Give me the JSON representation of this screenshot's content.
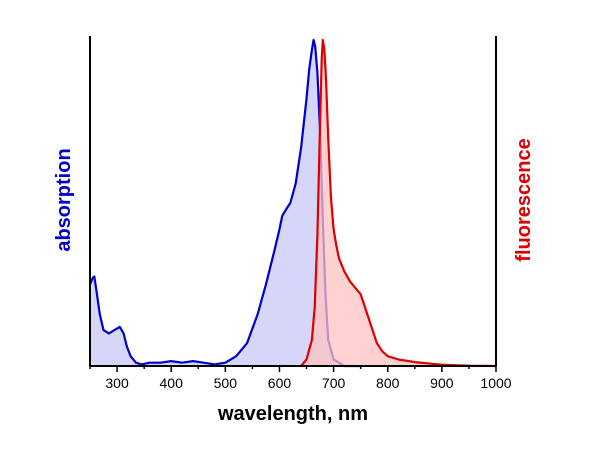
{
  "chart_data": {
    "type": "area",
    "xlabel": "wavelength, nm",
    "ylabel_left": "absorption",
    "ylabel_right": "fluorescence",
    "xlim": [
      250,
      1000
    ],
    "ylim": [
      0,
      1
    ],
    "x_ticks": [
      300,
      400,
      500,
      600,
      700,
      800,
      900,
      1000
    ],
    "grid": false,
    "series": [
      {
        "name": "absorption",
        "color": "#0000cc",
        "fill": "#c8c8f5",
        "axis": "left",
        "x": [
          250,
          255,
          258,
          262,
          268,
          275,
          285,
          295,
          305,
          312,
          318,
          325,
          335,
          345,
          360,
          380,
          400,
          420,
          440,
          460,
          480,
          500,
          520,
          540,
          560,
          575,
          590,
          600,
          605,
          612,
          620,
          630,
          640,
          650,
          655,
          660,
          663,
          666,
          670,
          675,
          680,
          685,
          690,
          700,
          720,
          750
        ],
        "y": [
          0.25,
          0.27,
          0.275,
          0.23,
          0.16,
          0.11,
          0.1,
          0.11,
          0.12,
          0.1,
          0.06,
          0.03,
          0.01,
          0.005,
          0.01,
          0.01,
          0.015,
          0.01,
          0.015,
          0.01,
          0.005,
          0.01,
          0.03,
          0.07,
          0.16,
          0.25,
          0.35,
          0.42,
          0.46,
          0.48,
          0.5,
          0.56,
          0.67,
          0.82,
          0.91,
          0.97,
          1.0,
          0.98,
          0.9,
          0.72,
          0.45,
          0.22,
          0.08,
          0.02,
          0.0,
          0.0
        ]
      },
      {
        "name": "fluorescence",
        "color": "#dd0000",
        "fill": "#ffc2c2",
        "axis": "right",
        "x": [
          640,
          650,
          660,
          665,
          670,
          675,
          678,
          680,
          683,
          686,
          690,
          695,
          700,
          705,
          710,
          720,
          730,
          740,
          750,
          760,
          770,
          780,
          790,
          800,
          820,
          850,
          880,
          900,
          950,
          1000
        ],
        "y": [
          0.0,
          0.02,
          0.08,
          0.18,
          0.4,
          0.75,
          0.94,
          1.0,
          0.97,
          0.88,
          0.7,
          0.52,
          0.42,
          0.37,
          0.33,
          0.29,
          0.26,
          0.24,
          0.22,
          0.17,
          0.12,
          0.07,
          0.045,
          0.03,
          0.02,
          0.012,
          0.007,
          0.004,
          0.001,
          0.0
        ]
      }
    ]
  }
}
